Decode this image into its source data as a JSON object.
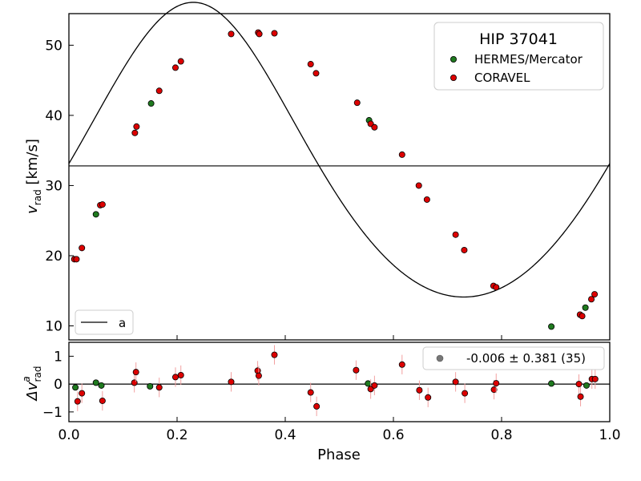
{
  "chart_data": [
    {
      "type": "scatter",
      "title": "HIP 37041",
      "xlabel": "",
      "ylabel_main": "v",
      "ylabel_sub": "rad",
      "ylabel_unit": " [km/s]",
      "xlim": [
        0.0,
        1.0
      ],
      "ylim": [
        8.0,
        54.5
      ],
      "yticks": [
        10,
        20,
        30,
        40,
        50
      ],
      "systemic_velocity": 32.8,
      "model_label": "a",
      "model": {
        "gamma": 32.8,
        "K": 21.0,
        "e": 0.11,
        "omega_deg": 0.0,
        "t_peri_phase": 0.23
      },
      "legend": {
        "position": "top-right",
        "title": "HIP 37041"
      },
      "series": [
        {
          "name": "HERMES/Mercator",
          "color": "#1f7a1f",
          "points": [
            {
              "x": 0.05,
              "y": 25.9
            },
            {
              "x": 0.152,
              "y": 41.7
            },
            {
              "x": 0.555,
              "y": 39.3
            },
            {
              "x": 0.892,
              "y": 9.9
            },
            {
              "x": 0.955,
              "y": 12.6
            }
          ]
        },
        {
          "name": "CORAVEL",
          "color": "#dd0000",
          "points": [
            {
              "x": 0.01,
              "y": 19.5
            },
            {
              "x": 0.014,
              "y": 19.5
            },
            {
              "x": 0.024,
              "y": 21.1
            },
            {
              "x": 0.058,
              "y": 27.2
            },
            {
              "x": 0.062,
              "y": 27.3
            },
            {
              "x": 0.122,
              "y": 37.5
            },
            {
              "x": 0.125,
              "y": 38.4
            },
            {
              "x": 0.167,
              "y": 43.5
            },
            {
              "x": 0.197,
              "y": 46.8
            },
            {
              "x": 0.207,
              "y": 47.7
            },
            {
              "x": 0.3,
              "y": 51.6
            },
            {
              "x": 0.35,
              "y": 51.8
            },
            {
              "x": 0.352,
              "y": 51.6
            },
            {
              "x": 0.38,
              "y": 51.7
            },
            {
              "x": 0.447,
              "y": 47.3
            },
            {
              "x": 0.457,
              "y": 46.0
            },
            {
              "x": 0.533,
              "y": 41.8
            },
            {
              "x": 0.558,
              "y": 38.8
            },
            {
              "x": 0.565,
              "y": 38.3
            },
            {
              "x": 0.616,
              "y": 34.4
            },
            {
              "x": 0.647,
              "y": 30.0
            },
            {
              "x": 0.662,
              "y": 28.0
            },
            {
              "x": 0.715,
              "y": 23.0
            },
            {
              "x": 0.731,
              "y": 20.8
            },
            {
              "x": 0.785,
              "y": 15.7
            },
            {
              "x": 0.79,
              "y": 15.5
            },
            {
              "x": 0.945,
              "y": 11.6
            },
            {
              "x": 0.949,
              "y": 11.4
            },
            {
              "x": 0.966,
              "y": 13.8
            },
            {
              "x": 0.972,
              "y": 14.5
            }
          ]
        }
      ]
    },
    {
      "type": "scatter",
      "xlabel": "Phase",
      "ylabel_main": "Δv",
      "ylabel_sub": "rad",
      "ylabel_sup": "a",
      "xlim": [
        0.0,
        1.0
      ],
      "ylim": [
        -1.35,
        1.5
      ],
      "xticks": [
        "0.0",
        "0.2",
        "0.4",
        "0.6",
        "0.8",
        "1.0"
      ],
      "yticks": [
        -1,
        0,
        1
      ],
      "legend": {
        "position": "top-right",
        "label": "-0.006 ± 0.381 (35)"
      },
      "series": [
        {
          "name": "HERMES/Mercator",
          "color": "#1f7a1f",
          "points": [
            {
              "x": 0.012,
              "y": -0.12,
              "err": 0.0
            },
            {
              "x": 0.05,
              "y": 0.05,
              "err": 0.0
            },
            {
              "x": 0.06,
              "y": -0.05,
              "err": 0.0
            },
            {
              "x": 0.15,
              "y": -0.08,
              "err": 0.0
            },
            {
              "x": 0.553,
              "y": 0.02,
              "err": 0.0
            },
            {
              "x": 0.892,
              "y": 0.02,
              "err": 0.0
            },
            {
              "x": 0.957,
              "y": -0.05,
              "err": 0.0
            }
          ]
        },
        {
          "name": "CORAVEL",
          "color": "#dd0000",
          "points": [
            {
              "x": 0.016,
              "y": -0.62,
              "err": 0.35
            },
            {
              "x": 0.024,
              "y": -0.33,
              "err": 0.35
            },
            {
              "x": 0.062,
              "y": -0.6,
              "err": 0.35
            },
            {
              "x": 0.121,
              "y": 0.05,
              "err": 0.35
            },
            {
              "x": 0.124,
              "y": 0.43,
              "err": 0.35
            },
            {
              "x": 0.167,
              "y": -0.12,
              "err": 0.35
            },
            {
              "x": 0.197,
              "y": 0.25,
              "err": 0.35
            },
            {
              "x": 0.207,
              "y": 0.32,
              "err": 0.35
            },
            {
              "x": 0.3,
              "y": 0.08,
              "err": 0.35
            },
            {
              "x": 0.349,
              "y": 0.48,
              "err": 0.35
            },
            {
              "x": 0.351,
              "y": 0.3,
              "err": 0.35
            },
            {
              "x": 0.38,
              "y": 1.05,
              "err": 0.35
            },
            {
              "x": 0.447,
              "y": -0.3,
              "err": 0.35
            },
            {
              "x": 0.458,
              "y": -0.8,
              "err": 0.35
            },
            {
              "x": 0.531,
              "y": 0.5,
              "err": 0.35
            },
            {
              "x": 0.558,
              "y": -0.18,
              "err": 0.35
            },
            {
              "x": 0.565,
              "y": -0.05,
              "err": 0.35
            },
            {
              "x": 0.616,
              "y": 0.7,
              "err": 0.35
            },
            {
              "x": 0.648,
              "y": -0.22,
              "err": 0.35
            },
            {
              "x": 0.664,
              "y": -0.48,
              "err": 0.35
            },
            {
              "x": 0.715,
              "y": 0.08,
              "err": 0.35
            },
            {
              "x": 0.732,
              "y": -0.33,
              "err": 0.35
            },
            {
              "x": 0.786,
              "y": -0.2,
              "err": 0.35
            },
            {
              "x": 0.79,
              "y": 0.03,
              "err": 0.35
            },
            {
              "x": 0.943,
              "y": 0.0,
              "err": 0.35
            },
            {
              "x": 0.946,
              "y": -0.45,
              "err": 0.35
            },
            {
              "x": 0.967,
              "y": 0.18,
              "err": 0.35
            },
            {
              "x": 0.973,
              "y": 0.18,
              "err": 0.35
            }
          ]
        }
      ]
    }
  ]
}
